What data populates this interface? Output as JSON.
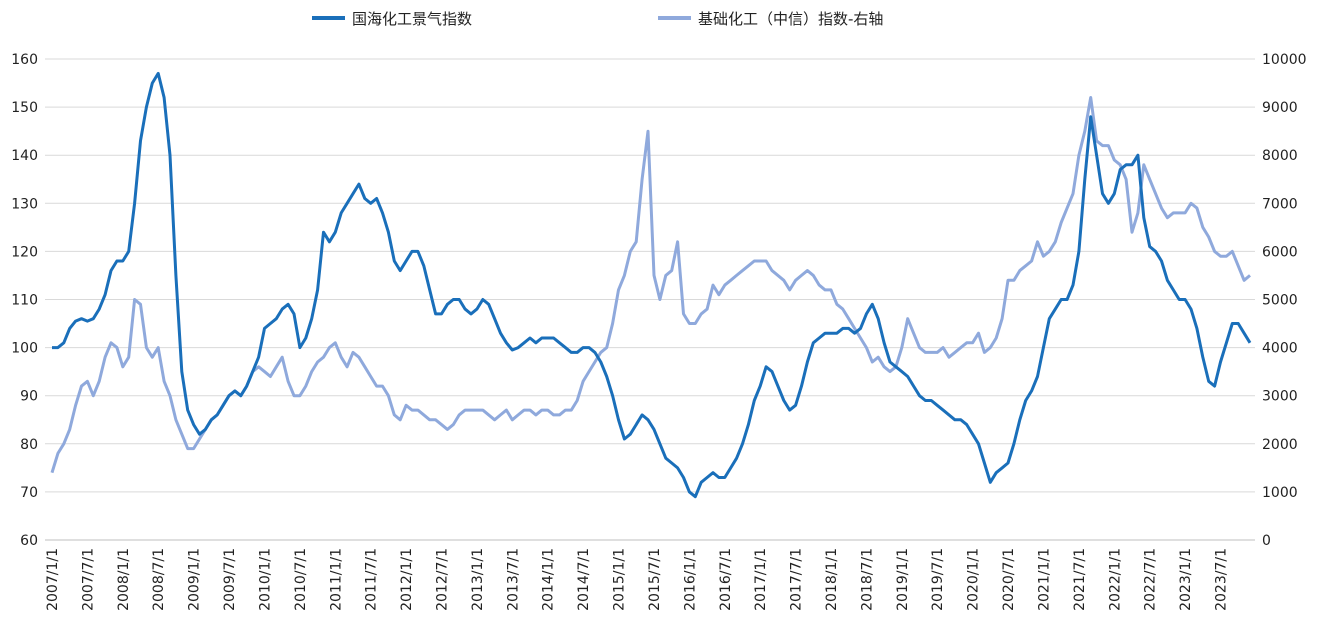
{
  "chart_data": {
    "type": "line",
    "categories": [
      "2007/1/1",
      null,
      null,
      null,
      null,
      null,
      "2007/7/1",
      null,
      null,
      null,
      null,
      null,
      "2008/1/1",
      null,
      null,
      null,
      null,
      null,
      "2008/7/1",
      null,
      null,
      null,
      null,
      null,
      "2009/1/1",
      null,
      null,
      null,
      null,
      null,
      "2009/7/1",
      null,
      null,
      null,
      null,
      null,
      "2010/1/1",
      null,
      null,
      null,
      null,
      null,
      "2010/7/1",
      null,
      null,
      null,
      null,
      null,
      "2011/1/1",
      null,
      null,
      null,
      null,
      null,
      "2011/7/1",
      null,
      null,
      null,
      null,
      null,
      "2012/1/1",
      null,
      null,
      null,
      null,
      null,
      "2012/7/1",
      null,
      null,
      null,
      null,
      null,
      "2013/1/1",
      null,
      null,
      null,
      null,
      null,
      "2013/7/1",
      null,
      null,
      null,
      null,
      null,
      "2014/1/1",
      null,
      null,
      null,
      null,
      null,
      "2014/7/1",
      null,
      null,
      null,
      null,
      null,
      "2015/1/1",
      null,
      null,
      null,
      null,
      null,
      "2015/7/1",
      null,
      null,
      null,
      null,
      null,
      "2016/1/1",
      null,
      null,
      null,
      null,
      null,
      "2016/7/1",
      null,
      null,
      null,
      null,
      null,
      "2017/1/1",
      null,
      null,
      null,
      null,
      null,
      "2017/7/1",
      null,
      null,
      null,
      null,
      null,
      "2018/1/1",
      null,
      null,
      null,
      null,
      null,
      "2018/7/1",
      null,
      null,
      null,
      null,
      null,
      "2019/1/1",
      null,
      null,
      null,
      null,
      null,
      "2019/7/1",
      null,
      null,
      null,
      null,
      null,
      "2020/1/1",
      null,
      null,
      null,
      null,
      null,
      "2020/7/1",
      null,
      null,
      null,
      null,
      null,
      "2021/1/1",
      null,
      null,
      null,
      null,
      null,
      "2021/7/1",
      null,
      null,
      null,
      null,
      null,
      "2022/1/1",
      null,
      null,
      null,
      null,
      null,
      "2022/7/1",
      null,
      null,
      null,
      null,
      null,
      "2023/1/1",
      null,
      null,
      null,
      null,
      null,
      "2023/7/1",
      null,
      null,
      null,
      null,
      null
    ],
    "series": [
      {
        "name": "国海化工景气指数",
        "color": "#1a6fba",
        "values": [
          100,
          100,
          101,
          104,
          105.5,
          106,
          105.5,
          106,
          108,
          111,
          116,
          118,
          118,
          120,
          130,
          143,
          150,
          155,
          157,
          152,
          140,
          115,
          95,
          87,
          84,
          82,
          83,
          85,
          86,
          88,
          90,
          91,
          90,
          92,
          95,
          98,
          104,
          105,
          106,
          108,
          109,
          107,
          100,
          102,
          106,
          112,
          124,
          122,
          124,
          128,
          130,
          132,
          134,
          131,
          130,
          131,
          128,
          124,
          118,
          116,
          118,
          120,
          120,
          117,
          112,
          107,
          107,
          109,
          110,
          110,
          108,
          107,
          108,
          110,
          109,
          106,
          103,
          101,
          99.5,
          100,
          101,
          102,
          101,
          102,
          102,
          102,
          101,
          100,
          99,
          99,
          100,
          100,
          99,
          97,
          94,
          90,
          85,
          81,
          82,
          84,
          86,
          85,
          83,
          80,
          77,
          76,
          75,
          73,
          70,
          69,
          72,
          73,
          74,
          73,
          73,
          75,
          77,
          80,
          84,
          89,
          92,
          96,
          95,
          92,
          89,
          87,
          88,
          92,
          97,
          101,
          102,
          103,
          103,
          103,
          104,
          104,
          103,
          104,
          107,
          109,
          106,
          101,
          97,
          96,
          95,
          94,
          92,
          90,
          89,
          89,
          88,
          87,
          86,
          85,
          85,
          84,
          82,
          80,
          76,
          72,
          74,
          75,
          76,
          80,
          85,
          89,
          91,
          94,
          100,
          106,
          108,
          110,
          110,
          113,
          120,
          135,
          148,
          140,
          132,
          130,
          132,
          137,
          138,
          138,
          140,
          127,
          121,
          120,
          118,
          114,
          112,
          110,
          110,
          108,
          104,
          98,
          93,
          92,
          97,
          101,
          105,
          105,
          103,
          101
        ]
      },
      {
        "name": "基础化工（中信）指数-右轴",
        "color": "#8fa9dc",
        "axis": "y2",
        "values": [
          1400,
          1800,
          2000,
          2300,
          2800,
          3200,
          3300,
          3000,
          3300,
          3800,
          4100,
          4000,
          3600,
          3800,
          5000,
          4900,
          4000,
          3800,
          4000,
          3300,
          3000,
          2500,
          2200,
          1900,
          1900,
          2100,
          2300,
          2500,
          2600,
          2800,
          3000,
          3100,
          3000,
          3200,
          3500,
          3600,
          3500,
          3400,
          3600,
          3800,
          3300,
          3000,
          3000,
          3200,
          3500,
          3700,
          3800,
          4000,
          4100,
          3800,
          3600,
          3900,
          3800,
          3600,
          3400,
          3200,
          3200,
          3000,
          2600,
          2500,
          2800,
          2700,
          2700,
          2600,
          2500,
          2500,
          2400,
          2300,
          2400,
          2600,
          2700,
          2700,
          2700,
          2700,
          2600,
          2500,
          2600,
          2700,
          2500,
          2600,
          2700,
          2700,
          2600,
          2700,
          2700,
          2600,
          2600,
          2700,
          2700,
          2900,
          3300,
          3500,
          3700,
          3900,
          4000,
          4500,
          5200,
          5500,
          6000,
          6200,
          7500,
          8500,
          5500,
          5000,
          5500,
          5600,
          6200,
          4700,
          4500,
          4500,
          4700,
          4800,
          5300,
          5100,
          5300,
          5400,
          5500,
          5600,
          5700,
          5800,
          5800,
          5800,
          5600,
          5500,
          5400,
          5200,
          5400,
          5500,
          5600,
          5500,
          5300,
          5200,
          5200,
          4900,
          4800,
          4600,
          4400,
          4200,
          4000,
          3700,
          3800,
          3600,
          3500,
          3600,
          4000,
          4600,
          4300,
          4000,
          3900,
          3900,
          3900,
          4000,
          3800,
          3900,
          4000,
          4100,
          4100,
          4300,
          3900,
          4000,
          4200,
          4600,
          5400,
          5400,
          5600,
          5700,
          5800,
          6200,
          5900,
          6000,
          6200,
          6600,
          6900,
          7200,
          8000,
          8500,
          9200,
          8300,
          8200,
          8200,
          7900,
          7800,
          7500,
          6400,
          6800,
          7800,
          7500,
          7200,
          6900,
          6700,
          6800,
          6800,
          6800,
          7000,
          6900,
          6500,
          6300,
          6000,
          5900,
          5900,
          6000,
          5700,
          5400,
          5500
        ]
      }
    ],
    "ylim": [
      60,
      160
    ],
    "yticks": [
      60,
      70,
      80,
      90,
      100,
      110,
      120,
      130,
      140,
      150,
      160
    ],
    "y2lim": [
      0,
      10000
    ],
    "y2ticks": [
      0,
      1000,
      2000,
      3000,
      4000,
      5000,
      6000,
      7000,
      8000,
      9000,
      10000
    ],
    "grid": true,
    "legend": "top"
  }
}
